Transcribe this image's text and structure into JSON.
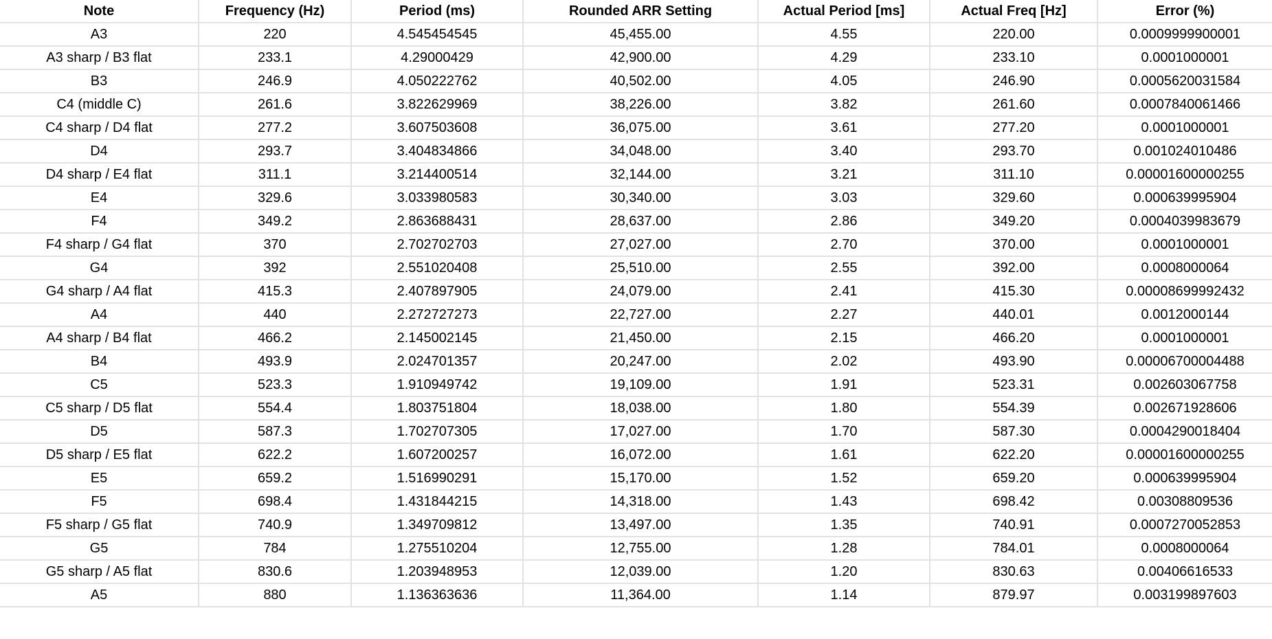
{
  "table": {
    "columns": [
      "Note",
      "Frequency (Hz)",
      "Period (ms)",
      "Rounded ARR Setting",
      "Actual Period [ms]",
      "Actual Freq [Hz]",
      "Error (%)"
    ],
    "rows": [
      [
        "A3",
        "220",
        "4.545454545",
        "45,455.00",
        "4.55",
        "220.00",
        "0.0009999900001"
      ],
      [
        "A3 sharp / B3 flat",
        "233.1",
        "4.29000429",
        "42,900.00",
        "4.29",
        "233.10",
        "0.0001000001"
      ],
      [
        "B3",
        "246.9",
        "4.050222762",
        "40,502.00",
        "4.05",
        "246.90",
        "0.0005620031584"
      ],
      [
        "C4 (middle C)",
        "261.6",
        "3.822629969",
        "38,226.00",
        "3.82",
        "261.60",
        "0.0007840061466"
      ],
      [
        "C4 sharp / D4 flat",
        "277.2",
        "3.607503608",
        "36,075.00",
        "3.61",
        "277.20",
        "0.0001000001"
      ],
      [
        "D4",
        "293.7",
        "3.404834866",
        "34,048.00",
        "3.40",
        "293.70",
        "0.001024010486"
      ],
      [
        "D4 sharp / E4 flat",
        "311.1",
        "3.214400514",
        "32,144.00",
        "3.21",
        "311.10",
        "0.00001600000255"
      ],
      [
        "E4",
        "329.6",
        "3.033980583",
        "30,340.00",
        "3.03",
        "329.60",
        "0.000639995904"
      ],
      [
        "F4",
        "349.2",
        "2.863688431",
        "28,637.00",
        "2.86",
        "349.20",
        "0.0004039983679"
      ],
      [
        "F4 sharp / G4 flat",
        "370",
        "2.702702703",
        "27,027.00",
        "2.70",
        "370.00",
        "0.0001000001"
      ],
      [
        "G4",
        "392",
        "2.551020408",
        "25,510.00",
        "2.55",
        "392.00",
        "0.0008000064"
      ],
      [
        "G4 sharp / A4 flat",
        "415.3",
        "2.407897905",
        "24,079.00",
        "2.41",
        "415.30",
        "0.00008699992432"
      ],
      [
        "A4",
        "440",
        "2.272727273",
        "22,727.00",
        "2.27",
        "440.01",
        "0.0012000144"
      ],
      [
        "A4 sharp / B4 flat",
        "466.2",
        "2.145002145",
        "21,450.00",
        "2.15",
        "466.20",
        "0.0001000001"
      ],
      [
        "B4",
        "493.9",
        "2.024701357",
        "20,247.00",
        "2.02",
        "493.90",
        "0.00006700004488"
      ],
      [
        "C5",
        "523.3",
        "1.910949742",
        "19,109.00",
        "1.91",
        "523.31",
        "0.002603067758"
      ],
      [
        "C5 sharp / D5 flat",
        "554.4",
        "1.803751804",
        "18,038.00",
        "1.80",
        "554.39",
        "0.002671928606"
      ],
      [
        "D5",
        "587.3",
        "1.702707305",
        "17,027.00",
        "1.70",
        "587.30",
        "0.0004290018404"
      ],
      [
        "D5 sharp / E5 flat",
        "622.2",
        "1.607200257",
        "16,072.00",
        "1.61",
        "622.20",
        "0.00001600000255"
      ],
      [
        "E5",
        "659.2",
        "1.516990291",
        "15,170.00",
        "1.52",
        "659.20",
        "0.000639995904"
      ],
      [
        "F5",
        "698.4",
        "1.431844215",
        "14,318.00",
        "1.43",
        "698.42",
        "0.00308809536"
      ],
      [
        "F5 sharp / G5 flat",
        "740.9",
        "1.349709812",
        "13,497.00",
        "1.35",
        "740.91",
        "0.0007270052853"
      ],
      [
        "G5",
        "784",
        "1.275510204",
        "12,755.00",
        "1.28",
        "784.01",
        "0.0008000064"
      ],
      [
        "G5 sharp / A5 flat",
        "830.6",
        "1.203948953",
        "12,039.00",
        "1.20",
        "830.63",
        "0.00406616533"
      ],
      [
        "A5",
        "880",
        "1.136363636",
        "11,364.00",
        "1.14",
        "879.97",
        "0.003199897603"
      ]
    ]
  }
}
